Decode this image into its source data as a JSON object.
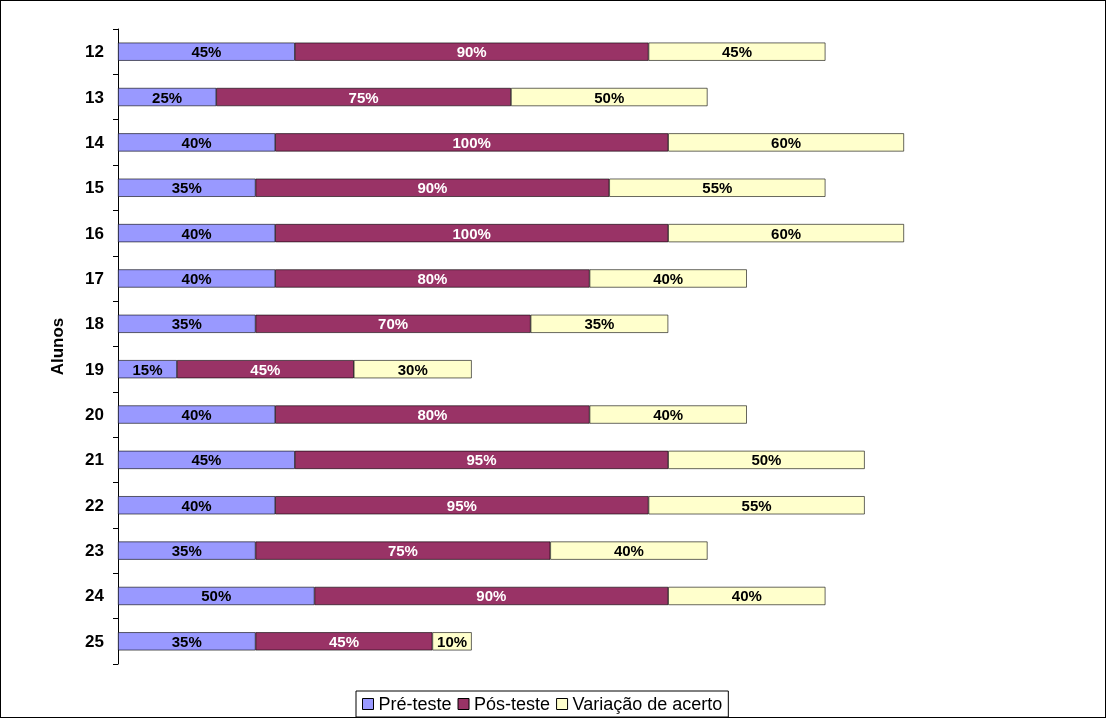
{
  "chart_data": {
    "type": "bar",
    "orientation": "horizontal",
    "stacked": true,
    "ylabel": "Alunos",
    "categories": [
      "12",
      "13",
      "14",
      "15",
      "16",
      "17",
      "18",
      "19",
      "20",
      "21",
      "22",
      "23",
      "24",
      "25"
    ],
    "series": [
      {
        "name": "Pré-teste",
        "color": "#9999ff",
        "values": [
          45,
          25,
          40,
          35,
          40,
          40,
          35,
          15,
          40,
          45,
          40,
          35,
          50,
          35
        ],
        "value_labels": [
          "45%",
          "25%",
          "40%",
          "35%",
          "40%",
          "40%",
          "35%",
          "15%",
          "40%",
          "45%",
          "40%",
          "35%",
          "50%",
          "35%"
        ]
      },
      {
        "name": "Pós-teste",
        "color": "#993366",
        "values": [
          90,
          75,
          100,
          90,
          100,
          80,
          70,
          45,
          80,
          95,
          95,
          75,
          90,
          45
        ],
        "value_labels": [
          "90%",
          "75%",
          "100%",
          "90%",
          "100%",
          "80%",
          "70%",
          "45%",
          "80%",
          "95%",
          "95%",
          "75%",
          "90%",
          "45%"
        ]
      },
      {
        "name": "Variação de acerto",
        "color": "#ffffcc",
        "values": [
          45,
          50,
          60,
          55,
          60,
          40,
          35,
          30,
          40,
          50,
          55,
          40,
          40,
          10
        ],
        "value_labels": [
          "45%",
          "50%",
          "60%",
          "55%",
          "60%",
          "40%",
          "35%",
          "30%",
          "40%",
          "50%",
          "55%",
          "40%",
          "40%",
          "10%"
        ]
      }
    ],
    "legend": "bottom"
  }
}
